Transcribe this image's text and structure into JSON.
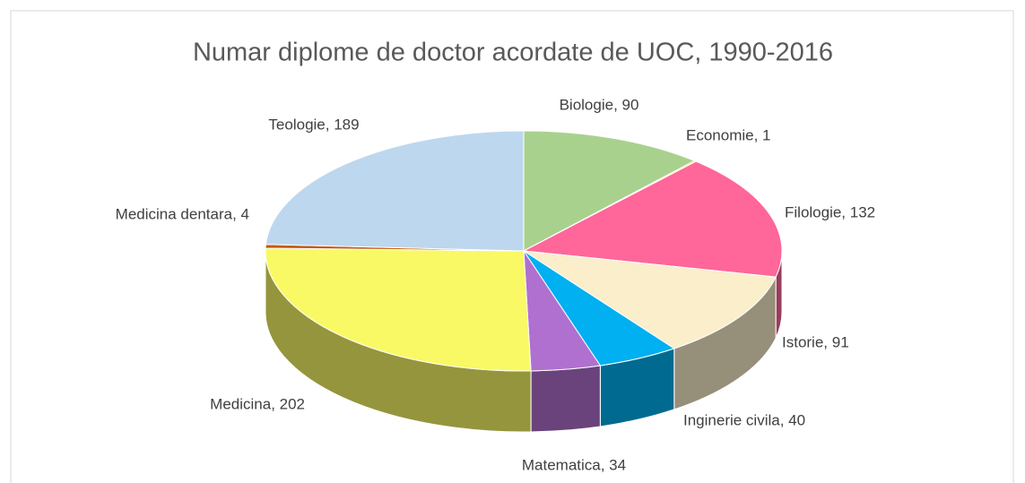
{
  "chart_data": {
    "type": "pie",
    "title": "Numar diplome de doctor acordate de UOC, 1990-2016",
    "values": [
      90,
      1,
      132,
      91,
      40,
      34,
      202,
      4,
      189
    ],
    "value_labels": [
      "Biologie, 90",
      "Economie, 1",
      "Filologie, 132",
      "Istorie, 91",
      "Inginerie civila, 40",
      "Matematica, 34",
      "Medicina, 202",
      "Medicina dentara, 4",
      "Teologie, 189"
    ],
    "colors": [
      "#a9d18e",
      "#ffc000",
      "#ff6699",
      "#faeecb",
      "#00b0f0",
      "#b070d0",
      "#f9f966",
      "#c55a11",
      "#bdd7ee"
    ]
  }
}
